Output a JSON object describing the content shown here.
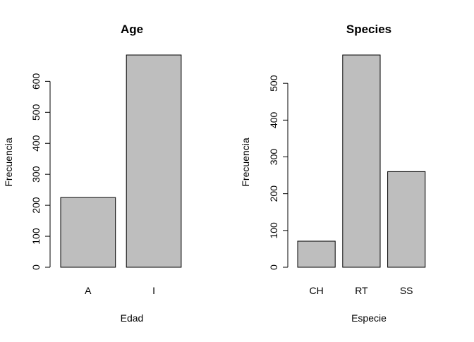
{
  "chart_data": [
    {
      "type": "bar",
      "title": "Age",
      "xlabel": "Edad",
      "ylabel": "Frecuencia",
      "categories": [
        "A",
        "I"
      ],
      "values": [
        225,
        685
      ],
      "ylim": [
        0,
        685
      ],
      "yticks": [
        0,
        100,
        200,
        300,
        400,
        500,
        600
      ],
      "bar_fill": "#bebebe",
      "bar_stroke": "#000000",
      "grid": false,
      "legend": "none"
    },
    {
      "type": "bar",
      "title": "Species",
      "xlabel": "Especie",
      "ylabel": "Frecuencia",
      "categories": [
        "CH",
        "RT",
        "SS"
      ],
      "values": [
        71,
        577,
        260
      ],
      "ylim": [
        0,
        577
      ],
      "yticks": [
        0,
        100,
        200,
        300,
        400,
        500
      ],
      "bar_fill": "#bebebe",
      "bar_stroke": "#000000",
      "grid": false,
      "legend": "none"
    }
  ]
}
